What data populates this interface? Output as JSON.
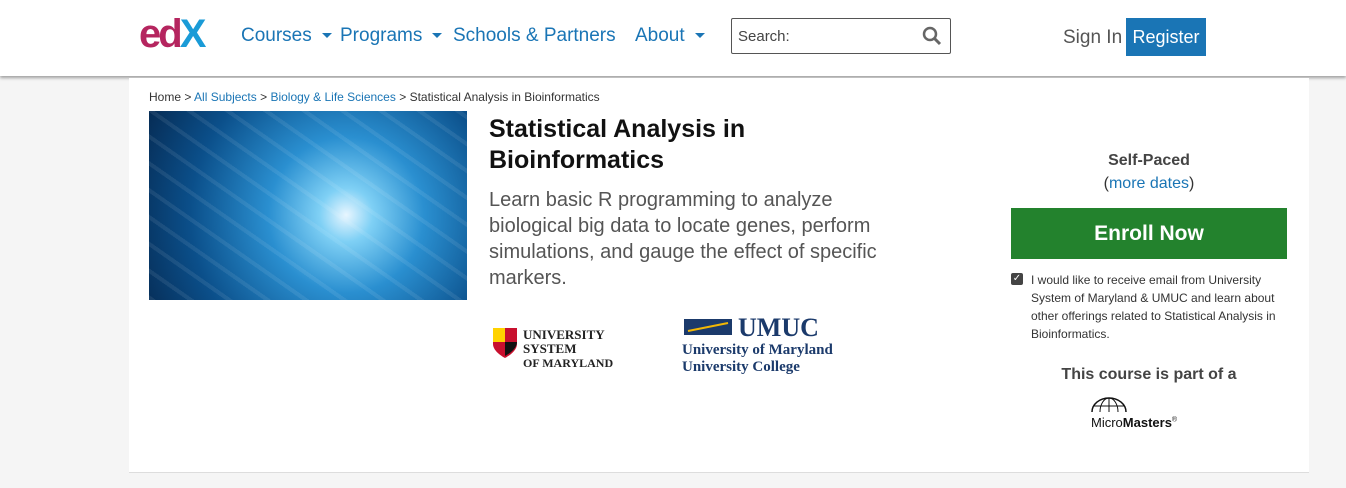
{
  "header": {
    "logo": {
      "part1": "ed",
      "part2": "X"
    },
    "nav": [
      "Courses",
      "Programs",
      "Schools & Partners",
      "About"
    ],
    "search_placeholder": "Search:",
    "sign_in": "Sign In",
    "register": "Register"
  },
  "breadcrumb": {
    "items": [
      "Home",
      "All Subjects",
      "Biology & Life Sciences",
      "Statistical Analysis in Bioinformatics"
    ],
    "separator": ">"
  },
  "course": {
    "title": "Statistical Analysis in Bioinformatics",
    "description": "Learn basic R programming to analyze biological big data to locate genes, perform simulations, and gauge the effect of specific markers.",
    "partners": [
      {
        "lines": [
          "University System",
          "of Maryland"
        ]
      },
      {
        "lines": [
          "UMUC",
          "University of Maryland",
          "University College"
        ]
      }
    ]
  },
  "sidebar": {
    "pacing": "Self-Paced",
    "dates_open": "(",
    "dates_link": "more dates",
    "dates_close": ")",
    "enroll": "Enroll Now",
    "email_optin": "I would like to receive email from University System of Maryland & UMUC and learn about other offerings related to Statistical Analysis in Bioinformatics.",
    "program_intro": "This course is part of a",
    "program": {
      "prefix": "Micro",
      "suffix": "Masters",
      "mark": "®"
    }
  }
}
